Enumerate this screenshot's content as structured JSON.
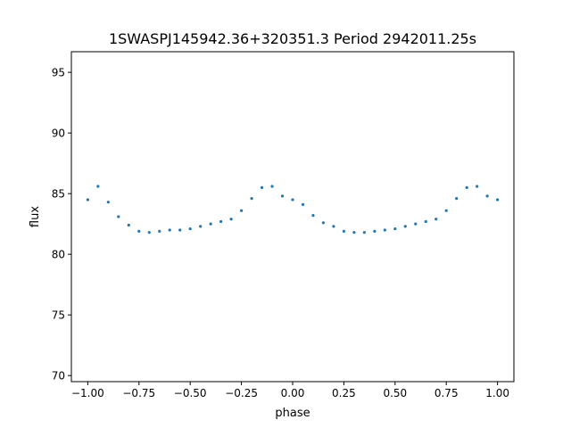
{
  "chart_data": {
    "type": "scatter",
    "title": "1SWASPJ145942.36+320351.3 Period 2942011.25s",
    "xlabel": "phase",
    "ylabel": "flux",
    "xlim": [
      -1.08,
      1.08
    ],
    "ylim": [
      69.5,
      96.7
    ],
    "xticks": [
      -1.0,
      -0.75,
      -0.5,
      -0.25,
      0.0,
      0.25,
      0.5,
      0.75,
      1.0
    ],
    "xtick_labels": [
      "−1.00",
      "−0.75",
      "−0.50",
      "−0.25",
      "0.00",
      "0.25",
      "0.50",
      "0.75",
      "1.00"
    ],
    "yticks": [
      70,
      75,
      80,
      85,
      90,
      95
    ],
    "ytick_labels": [
      "70",
      "75",
      "80",
      "85",
      "90",
      "95"
    ],
    "grid": false,
    "marker_color": "#1f77b4",
    "series": [
      {
        "x": [
          -1.0,
          -0.95,
          -0.9,
          -0.85,
          -0.8,
          -0.75,
          -0.7,
          -0.65,
          -0.6,
          -0.55,
          -0.5,
          -0.45,
          -0.4,
          -0.35,
          -0.3,
          -0.25,
          -0.2,
          -0.15,
          -0.1,
          -0.05,
          0.0,
          0.05,
          0.1,
          0.15,
          0.2,
          0.25,
          0.3,
          0.35,
          0.4,
          0.45,
          0.5,
          0.55,
          0.6,
          0.65,
          0.7,
          0.75,
          0.8,
          0.85,
          0.9,
          0.95,
          1.0
        ],
        "y": [
          84.5,
          85.6,
          84.3,
          83.1,
          82.4,
          81.9,
          81.8,
          81.9,
          82.0,
          82.0,
          82.1,
          82.3,
          82.5,
          82.7,
          82.9,
          83.6,
          84.6,
          85.5,
          85.6,
          84.8,
          84.5,
          84.1,
          83.2,
          82.6,
          82.3,
          81.9,
          81.8,
          81.8,
          81.9,
          82.0,
          82.1,
          82.3,
          82.5,
          82.7,
          82.9,
          83.6,
          84.6,
          85.5,
          85.6,
          84.8,
          84.5
        ]
      }
    ]
  }
}
